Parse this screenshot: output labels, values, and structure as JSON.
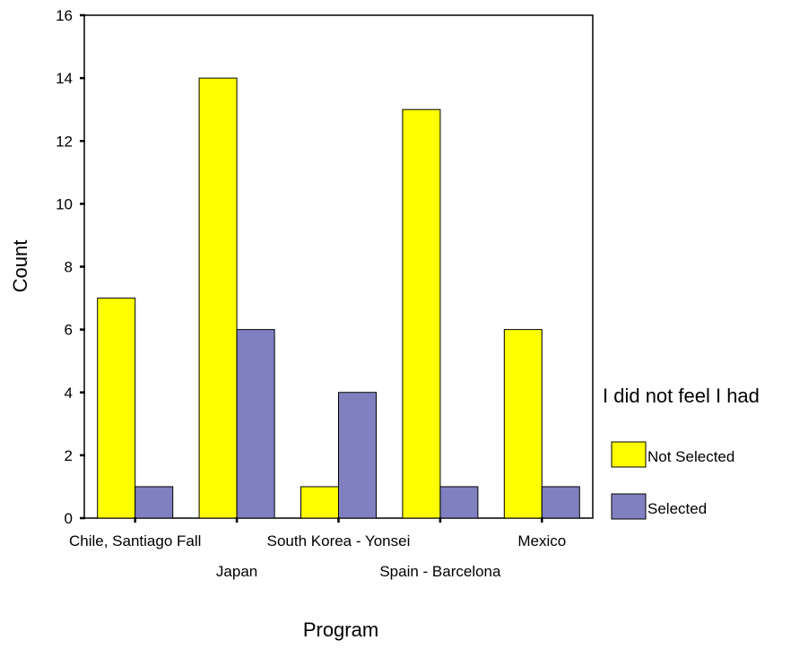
{
  "chart_data": {
    "type": "bar",
    "title": "",
    "xlabel": "Program",
    "ylabel": "Count",
    "ylim": [
      0,
      16
    ],
    "yticks": [
      0,
      2,
      4,
      6,
      8,
      10,
      12,
      14,
      16
    ],
    "grid": false,
    "legend_position": "right",
    "legend_title": "I did not feel I had",
    "categories": [
      "Chile, Santiago Fall",
      "Japan",
      "South Korea - Yonsei",
      "Spain - Barcelona",
      "Mexico"
    ],
    "series": [
      {
        "name": "Not Selected",
        "color": "#ffff00",
        "values": [
          7,
          14,
          1,
          13,
          6
        ]
      },
      {
        "name": "Selected",
        "color": "#8080c0",
        "values": [
          1,
          6,
          4,
          1,
          1
        ]
      }
    ]
  }
}
